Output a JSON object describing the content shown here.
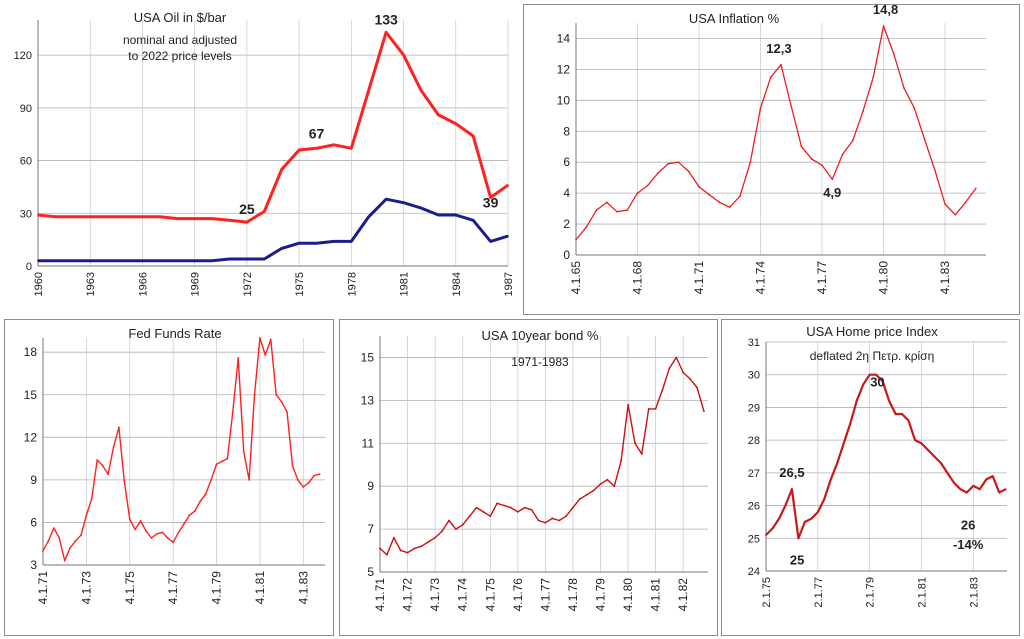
{
  "chart_data": [
    {
      "id": "oil",
      "type": "line",
      "title": "USA   Oil in $/bar",
      "subtitle_lines": [
        "nominal  and   adjusted",
        "to 2022 price levels"
      ],
      "x": [
        1960,
        1961,
        1962,
        1963,
        1964,
        1965,
        1966,
        1967,
        1968,
        1969,
        1970,
        1971,
        1972,
        1973,
        1974,
        1975,
        1976,
        1977,
        1978,
        1979,
        1980,
        1981,
        1982,
        1983,
        1984,
        1985,
        1986,
        1987
      ],
      "xticks": [
        "1960",
        "1963",
        "1966",
        "1969",
        "1972",
        "1975",
        "1978",
        "1981",
        "1984",
        "1987"
      ],
      "xlim": [
        1960,
        1987
      ],
      "ylim": [
        0,
        140
      ],
      "yticks": [
        "0",
        "30",
        "60",
        "90",
        "120"
      ],
      "series": [
        {
          "color": "#ff2020",
          "values": [
            29,
            28,
            28,
            28,
            28,
            28,
            28,
            28,
            27,
            27,
            27,
            26,
            25,
            31,
            55,
            66,
            67,
            69,
            67,
            100,
            133,
            120,
            100,
            86,
            81,
            74,
            39,
            46
          ]
        },
        {
          "color": "#1c1c8c",
          "values": [
            3,
            3,
            3,
            3,
            3,
            3,
            3,
            3,
            3,
            3,
            3,
            4,
            4,
            4,
            10,
            13,
            13,
            14,
            14,
            28,
            38,
            36,
            33,
            29,
            29,
            26,
            14,
            17
          ]
        }
      ],
      "annotations": [
        {
          "text": "133",
          "x": 1980,
          "y": 133
        },
        {
          "text": "67",
          "x": 1976,
          "y": 67
        },
        {
          "text": "25",
          "x": 1972,
          "y": 25
        },
        {
          "text": "39",
          "x": 1986,
          "y": 39
        }
      ]
    },
    {
      "id": "inflation",
      "type": "line",
      "title": "USA Inflation %",
      "x": [
        1965.0,
        1965.5,
        1966.0,
        1966.5,
        1967.0,
        1967.5,
        1968.0,
        1968.5,
        1969.0,
        1969.5,
        1970.0,
        1970.5,
        1971.0,
        1971.5,
        1972.0,
        1972.5,
        1973.0,
        1973.5,
        1974.0,
        1974.5,
        1975.0,
        1975.5,
        1976.0,
        1976.5,
        1977.0,
        1977.5,
        1978.0,
        1978.5,
        1979.0,
        1979.5,
        1980.0,
        1980.5,
        1981.0,
        1981.5,
        1982.0,
        1982.5,
        1983.0,
        1983.5,
        1984.0,
        1984.5
      ],
      "xticks": [
        "4.1.65",
        "4.1.68",
        "4.1.71",
        "4.1.74",
        "4.1.77",
        "4.1.80",
        "4.1.83"
      ],
      "xtick_values": [
        1965,
        1968,
        1971,
        1974,
        1977,
        1980,
        1983
      ],
      "xlim": [
        1965,
        1985
      ],
      "ylim": [
        0,
        15
      ],
      "yticks": [
        "0",
        "2",
        "4",
        "6",
        "8",
        "10",
        "12",
        "14"
      ],
      "series": [
        {
          "color": "#e82020",
          "values": [
            1.0,
            1.8,
            2.9,
            3.4,
            2.8,
            2.9,
            4.0,
            4.5,
            5.3,
            5.9,
            6.0,
            5.4,
            4.4,
            3.9,
            3.4,
            3.1,
            3.8,
            6.0,
            9.5,
            11.5,
            12.3,
            9.6,
            7.0,
            6.2,
            5.8,
            4.9,
            6.5,
            7.4,
            9.3,
            11.5,
            14.8,
            13.0,
            10.8,
            9.5,
            7.5,
            5.5,
            3.3,
            2.6,
            3.4,
            4.3
          ]
        }
      ],
      "annotations": [
        {
          "text": "12,3",
          "x": 1974.9,
          "y": 12.3
        },
        {
          "text": "14,8",
          "x": 1980.1,
          "y": 14.8
        },
        {
          "text": "4,9",
          "x": 1977.5,
          "y": 4.9
        }
      ]
    },
    {
      "id": "fedfunds",
      "type": "line",
      "title": "Fed Funds Rate",
      "x": [
        1971.0,
        1971.25,
        1971.5,
        1971.75,
        1972.0,
        1972.25,
        1972.5,
        1972.75,
        1973.0,
        1973.25,
        1973.5,
        1973.75,
        1974.0,
        1974.25,
        1974.5,
        1974.75,
        1975.0,
        1975.25,
        1975.5,
        1975.75,
        1976.0,
        1976.25,
        1976.5,
        1976.75,
        1977.0,
        1977.25,
        1977.5,
        1977.75,
        1978.0,
        1978.25,
        1978.5,
        1978.75,
        1979.0,
        1979.25,
        1979.5,
        1979.75,
        1980.0,
        1980.25,
        1980.5,
        1980.75,
        1981.0,
        1981.25,
        1981.5,
        1981.75,
        1982.0,
        1982.25,
        1982.5,
        1982.75,
        1983.0,
        1983.25,
        1983.5,
        1983.75
      ],
      "xticks": [
        "4.1.71",
        "4.1.73",
        "4.1.75",
        "4.1.77",
        "4.1.79",
        "4.1.81",
        "4.1.83"
      ],
      "xtick_values": [
        1971,
        1973,
        1975,
        1977,
        1979,
        1981,
        1983
      ],
      "xlim": [
        1971,
        1984
      ],
      "ylim": [
        3,
        19
      ],
      "yticks": [
        "3",
        "6",
        "9",
        "12",
        "15",
        "18"
      ],
      "series": [
        {
          "color": "#ff2020",
          "values": [
            4.0,
            4.7,
            5.6,
            4.9,
            3.3,
            4.2,
            4.7,
            5.1,
            6.5,
            7.7,
            10.4,
            10.0,
            9.4,
            11.3,
            12.7,
            8.9,
            6.2,
            5.5,
            6.1,
            5.4,
            4.9,
            5.2,
            5.3,
            4.9,
            4.6,
            5.3,
            5.9,
            6.5,
            6.8,
            7.5,
            8.0,
            9.0,
            10.1,
            10.3,
            10.5,
            13.8,
            17.6,
            11.0,
            9.0,
            15.0,
            19.0,
            17.8,
            18.9,
            15.0,
            14.5,
            13.8,
            10.0,
            9.0,
            8.5,
            8.8,
            9.3,
            9.4
          ]
        }
      ]
    },
    {
      "id": "bond10",
      "type": "line",
      "title": "USA 10year bond %",
      "subtitle": "1971-1983",
      "x": [
        1971.0,
        1971.25,
        1971.5,
        1971.75,
        1972.0,
        1972.25,
        1972.5,
        1972.75,
        1973.0,
        1973.25,
        1973.5,
        1973.75,
        1974.0,
        1974.25,
        1974.5,
        1974.75,
        1975.0,
        1975.25,
        1975.5,
        1975.75,
        1976.0,
        1976.25,
        1976.5,
        1976.75,
        1977.0,
        1977.25,
        1977.5,
        1977.75,
        1978.0,
        1978.25,
        1978.5,
        1978.75,
        1979.0,
        1979.25,
        1979.5,
        1979.75,
        1980.0,
        1980.25,
        1980.5,
        1980.75,
        1981.0,
        1981.25,
        1981.5,
        1981.75,
        1982.0,
        1982.25,
        1982.5,
        1982.75
      ],
      "xticks": [
        "4.1.71",
        "4.1.72",
        "4.1.73",
        "4.1.74",
        "4.1.75",
        "4.1.76",
        "4.1.77",
        "4.1.78",
        "4.1.79",
        "4.1.80",
        "4.1.81",
        "4.1.82"
      ],
      "xtick_values": [
        1971,
        1972,
        1973,
        1974,
        1975,
        1976,
        1977,
        1978,
        1979,
        1980,
        1981,
        1982
      ],
      "xlim": [
        1971,
        1982.9
      ],
      "ylim": [
        5,
        16
      ],
      "yticks": [
        "5",
        "7",
        "9",
        "11",
        "13",
        "15"
      ],
      "series": [
        {
          "color": "#cc1010",
          "values": [
            6.1,
            5.8,
            6.6,
            6.0,
            5.9,
            6.1,
            6.2,
            6.4,
            6.6,
            6.9,
            7.4,
            7.0,
            7.2,
            7.6,
            8.0,
            7.8,
            7.6,
            8.2,
            8.1,
            8.0,
            7.8,
            8.0,
            7.9,
            7.4,
            7.3,
            7.5,
            7.4,
            7.6,
            8.0,
            8.4,
            8.6,
            8.8,
            9.1,
            9.3,
            9.0,
            10.2,
            12.8,
            11.0,
            10.5,
            12.6,
            12.6,
            13.5,
            14.5,
            15.0,
            14.3,
            14.0,
            13.6,
            12.5
          ]
        }
      ]
    },
    {
      "id": "homeprice",
      "type": "line",
      "title": "USA Home price Index",
      "subtitle": "deflated 2η Πετρ. κρίση",
      "x": [
        1975.0,
        1975.25,
        1975.5,
        1975.75,
        1976.0,
        1976.25,
        1976.5,
        1976.75,
        1977.0,
        1977.25,
        1977.5,
        1977.75,
        1978.0,
        1978.25,
        1978.5,
        1978.75,
        1979.0,
        1979.25,
        1979.5,
        1979.75,
        1980.0,
        1980.25,
        1980.5,
        1980.75,
        1981.0,
        1981.25,
        1981.5,
        1981.75,
        1982.0,
        1982.25,
        1982.5,
        1982.75,
        1983.0,
        1983.25,
        1983.5,
        1983.75,
        1984.0,
        1984.25
      ],
      "xticks": [
        "2.1.75",
        "2.1.77",
        "2.1.79",
        "2.1.81",
        "2.1.83"
      ],
      "xtick_values": [
        1975,
        1977,
        1979,
        1981,
        1983
      ],
      "xlim": [
        1975,
        1984.3
      ],
      "ylim": [
        24,
        31
      ],
      "yticks": [
        "24",
        "25",
        "26",
        "27",
        "28",
        "29",
        "30",
        "31"
      ],
      "series": [
        {
          "color": "#c81818",
          "values": [
            25.1,
            25.3,
            25.6,
            26.0,
            26.5,
            25.0,
            25.5,
            25.6,
            25.8,
            26.2,
            26.8,
            27.3,
            27.9,
            28.5,
            29.2,
            29.7,
            30.0,
            30.0,
            29.8,
            29.2,
            28.8,
            28.8,
            28.6,
            28.0,
            27.9,
            27.7,
            27.5,
            27.3,
            27.0,
            26.7,
            26.5,
            26.4,
            26.6,
            26.5,
            26.8,
            26.9,
            26.4,
            26.5
          ]
        }
      ],
      "annotations": [
        {
          "text": "26,5",
          "x": 1976.0,
          "y": 26.5
        },
        {
          "text": "25",
          "x": 1976.2,
          "y": 25.0
        },
        {
          "text": "30",
          "x": 1979.3,
          "y": 30.0
        },
        {
          "text": "26",
          "x": 1982.8,
          "y": 26.0
        },
        {
          "text": "-14%",
          "x": 1982.8,
          "y": 25.4
        }
      ]
    }
  ]
}
